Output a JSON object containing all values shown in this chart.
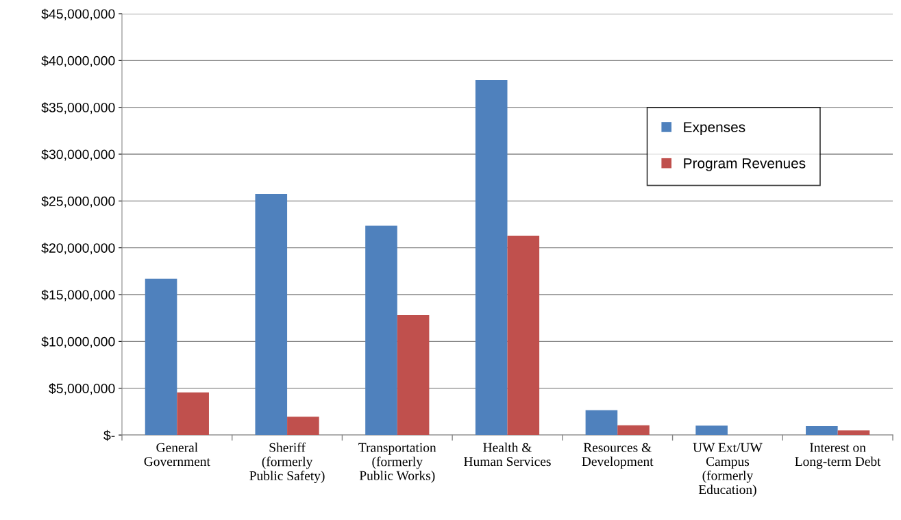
{
  "chart_data": {
    "type": "bar",
    "categories": [
      "General\nGovernment",
      "Sheriff\n(formerly\nPublic Safety)",
      "Transportation\n(formerly\nPublic Works)",
      "Health &\nHuman Services",
      "Resources &\nDevelopment",
      "UW Ext/UW\nCampus\n(formerly\nEducation)",
      "Interest on\nLong-term Debt"
    ],
    "series": [
      {
        "name": "Expenses",
        "color": "#4f81bd",
        "values": [
          16700000,
          25750000,
          22350000,
          37900000,
          2650000,
          1000000,
          950000
        ]
      },
      {
        "name": "Program Revenues",
        "color": "#c0504d",
        "values": [
          4550000,
          1950000,
          12800000,
          21300000,
          1050000,
          0,
          500000
        ]
      }
    ],
    "ylim": [
      0,
      45000000
    ],
    "yticks": [
      {
        "value": 0,
        "label": "$-"
      },
      {
        "value": 5000000,
        "label": "$5,000,000"
      },
      {
        "value": 10000000,
        "label": "$10,000,000"
      },
      {
        "value": 15000000,
        "label": "$15,000,000"
      },
      {
        "value": 20000000,
        "label": "$20,000,000"
      },
      {
        "value": 25000000,
        "label": "$25,000,000"
      },
      {
        "value": 30000000,
        "label": "$30,000,000"
      },
      {
        "value": 35000000,
        "label": "$35,000,000"
      },
      {
        "value": 40000000,
        "label": "$40,000,000"
      },
      {
        "value": 45000000,
        "label": "$45,000,000"
      }
    ],
    "grid": "y",
    "legend": "right"
  }
}
